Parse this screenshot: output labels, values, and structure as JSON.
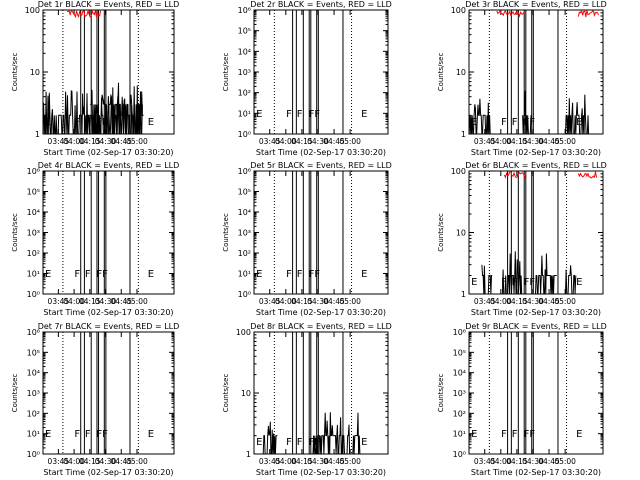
{
  "colors": {
    "events": "#000000",
    "lld": "#ff0000",
    "axes": "#000000",
    "background": "#ffffff"
  },
  "chart_data": [
    {
      "type": "line",
      "title": "Det 1r BLACK = Events, RED = LLD",
      "xlabel": "Start Time (02-Sep-17 03:30:20)",
      "ylabel": "Counts/sec",
      "scale": "log",
      "ylim": [
        1,
        100
      ],
      "ytick_labels": [
        "1",
        "10",
        "100"
      ],
      "xtick_labels": [
        "03:45",
        "04:00",
        "04:15",
        "04:30",
        "04:45",
        "05:00"
      ],
      "flags": [
        {
          "x": 1,
          "label": "E"
        },
        {
          "x": 29,
          "label": "F"
        },
        {
          "x": 39,
          "label": "F"
        },
        {
          "x": 50,
          "label": "FF"
        },
        {
          "x": 99,
          "label": "E"
        }
      ],
      "event_series": [
        {
          "from": 0,
          "to": 96,
          "level": 2,
          "spikes": 3
        },
        {
          "from": 45,
          "to": 95,
          "level": 3,
          "spikes": 4
        }
      ],
      "lld_series": [
        {
          "from": 23,
          "to": 55,
          "level": 90
        }
      ]
    },
    {
      "type": "line",
      "title": "Det 2r BLACK = Events, RED = LLD",
      "xlabel": "Start Time (02-Sep-17 03:30:20)",
      "ylabel": "Counts/sec",
      "scale": "log",
      "ylim": [
        1,
        1000000
      ],
      "ytick_labels": [
        "10⁰",
        "10¹",
        "10²",
        "10³",
        "10⁴",
        "10⁵",
        "10⁶"
      ],
      "xtick_labels": [
        "03:45",
        "04:00",
        "04:15",
        "04:30",
        "04:45",
        "05:00"
      ],
      "flags": [
        {
          "x": 1,
          "label": "E"
        },
        {
          "x": 29,
          "label": "F"
        },
        {
          "x": 39,
          "label": "F"
        },
        {
          "x": 50,
          "label": "FF"
        },
        {
          "x": 99,
          "label": "E"
        }
      ],
      "event_series": [],
      "lld_series": []
    },
    {
      "type": "line",
      "title": "Det 3r BLACK = Events, RED = LLD",
      "xlabel": "Start Time (02-Sep-17 03:30:20)",
      "ylabel": "Counts/sec",
      "scale": "log",
      "ylim": [
        1,
        100
      ],
      "ytick_labels": [
        "1",
        "10",
        "100"
      ],
      "xtick_labels": [
        "03:45",
        "04:00",
        "04:15",
        "04:30",
        "04:45",
        "05:00"
      ],
      "flags": [
        {
          "x": 1,
          "label": "E"
        },
        {
          "x": 29,
          "label": "F"
        },
        {
          "x": 39,
          "label": "F"
        },
        {
          "x": 50,
          "label": "FF"
        },
        {
          "x": 99,
          "label": "E"
        }
      ],
      "event_series": [
        {
          "from": 0,
          "to": 20,
          "level": 2,
          "spikes": 3
        },
        {
          "from": 50,
          "to": 58,
          "level": 2,
          "spikes": 3
        },
        {
          "from": 90,
          "to": 112,
          "level": 2,
          "spikes": 3
        }
      ],
      "lld_series": [
        {
          "from": 26,
          "to": 52,
          "level": 90
        },
        {
          "from": 102,
          "to": 121,
          "level": 90
        }
      ]
    },
    {
      "type": "line",
      "title": "Det 4r BLACK = Events, RED = LLD",
      "xlabel": "Start Time (02-Sep-17 03:30:20)",
      "ylabel": "Counts/sec",
      "scale": "log",
      "ylim": [
        1,
        1000000
      ],
      "ytick_labels": [
        "10⁰",
        "10¹",
        "10²",
        "10³",
        "10⁴",
        "10⁵",
        "10⁶"
      ],
      "xtick_labels": [
        "03:45",
        "04:00",
        "04:15",
        "04:30",
        "04:45",
        "05:00"
      ],
      "flags": [
        {
          "x": 1,
          "label": "E"
        },
        {
          "x": 29,
          "label": "F"
        },
        {
          "x": 39,
          "label": "F"
        },
        {
          "x": 50,
          "label": "FF"
        },
        {
          "x": 99,
          "label": "E"
        }
      ],
      "event_series": [],
      "lld_series": []
    },
    {
      "type": "line",
      "title": "Det 5r BLACK = Events, RED = LLD",
      "xlabel": "Start Time (02-Sep-17 03:30:20)",
      "ylabel": "Counts/sec",
      "scale": "log",
      "ylim": [
        1,
        1000000
      ],
      "ytick_labels": [
        "10⁰",
        "10¹",
        "10²",
        "10³",
        "10⁴",
        "10⁵",
        "10⁶"
      ],
      "xtick_labels": [
        "03:45",
        "04:00",
        "04:15",
        "04:30",
        "04:45",
        "05:00"
      ],
      "flags": [
        {
          "x": 1,
          "label": "E"
        },
        {
          "x": 29,
          "label": "F"
        },
        {
          "x": 39,
          "label": "F"
        },
        {
          "x": 50,
          "label": "FF"
        },
        {
          "x": 99,
          "label": "E"
        }
      ],
      "event_series": [],
      "lld_series": []
    },
    {
      "type": "line",
      "title": "Det 6r BLACK = Events, RED = LLD",
      "xlabel": "Start Time (02-Sep-17 03:30:20)",
      "ylabel": "Counts/sec",
      "scale": "log",
      "ylim": [
        1,
        100
      ],
      "ytick_labels": [
        "1",
        "10",
        "100"
      ],
      "xtick_labels": [
        "03:45",
        "04:00",
        "04:15",
        "04:30",
        "04:45",
        "05:00"
      ],
      "flags": [
        {
          "x": 1,
          "label": "E"
        },
        {
          "x": 29,
          "label": "F"
        },
        {
          "x": 39,
          "label": "F"
        },
        {
          "x": 50,
          "label": "FF"
        },
        {
          "x": 99,
          "label": "E"
        }
      ],
      "event_series": [
        {
          "from": 12,
          "to": 22,
          "level": 2,
          "spikes": 2
        },
        {
          "from": 30,
          "to": 50,
          "level": 2,
          "spikes": 3
        },
        {
          "from": 62,
          "to": 82,
          "level": 2,
          "spikes": 3
        },
        {
          "from": 90,
          "to": 100,
          "level": 2,
          "spikes": 2
        }
      ],
      "lld_series": [
        {
          "from": 33,
          "to": 53,
          "level": 90
        },
        {
          "from": 102,
          "to": 119,
          "level": 90
        }
      ]
    },
    {
      "type": "line",
      "title": "Det 7r BLACK = Events, RED = LLD",
      "xlabel": "Start Time (02-Sep-17 03:30:20)",
      "ylabel": "Counts/sec",
      "scale": "log",
      "ylim": [
        1,
        1000000
      ],
      "ytick_labels": [
        "10⁰",
        "10¹",
        "10²",
        "10³",
        "10⁴",
        "10⁵",
        "10⁶"
      ],
      "xtick_labels": [
        "03:45",
        "04:00",
        "04:15",
        "04:30",
        "04:45",
        "05:00"
      ],
      "flags": [
        {
          "x": 1,
          "label": "E"
        },
        {
          "x": 29,
          "label": "F"
        },
        {
          "x": 39,
          "label": "F"
        },
        {
          "x": 50,
          "label": "FF"
        },
        {
          "x": 99,
          "label": "E"
        }
      ],
      "event_series": [],
      "lld_series": []
    },
    {
      "type": "line",
      "title": "Det 8r BLACK = Events, RED = LLD",
      "xlabel": "Start Time (02-Sep-17 03:30:20)",
      "ylabel": "Counts/sec",
      "scale": "log",
      "ylim": [
        1,
        100
      ],
      "ytick_labels": [
        "1",
        "10",
        "100"
      ],
      "xtick_labels": [
        "03:45",
        "04:00",
        "04:15",
        "04:30",
        "04:45",
        "05:00"
      ],
      "flags": [
        {
          "x": 1,
          "label": "E"
        },
        {
          "x": 29,
          "label": "F"
        },
        {
          "x": 39,
          "label": "F"
        },
        {
          "x": 50,
          "label": "FF"
        },
        {
          "x": 99,
          "label": "E"
        }
      ],
      "event_series": [
        {
          "from": 8,
          "to": 22,
          "level": 2,
          "spikes": 2
        },
        {
          "from": 55,
          "to": 100,
          "level": 2,
          "spikes": 3
        }
      ],
      "lld_series": []
    },
    {
      "type": "line",
      "title": "Det 9r BLACK = Events, RED = LLD",
      "xlabel": "Start Time (02-Sep-17 03:30:20)",
      "ylabel": "Counts/sec",
      "scale": "log",
      "ylim": [
        1,
        1000000
      ],
      "ytick_labels": [
        "10⁰",
        "10¹",
        "10²",
        "10³",
        "10⁴",
        "10⁵",
        "10⁶"
      ],
      "xtick_labels": [
        "03:45",
        "04:00",
        "04:15",
        "04:30",
        "04:45",
        "05:00"
      ],
      "flags": [
        {
          "x": 1,
          "label": "E"
        },
        {
          "x": 29,
          "label": "F"
        },
        {
          "x": 39,
          "label": "F"
        },
        {
          "x": 50,
          "label": "FF"
        },
        {
          "x": 99,
          "label": "E"
        }
      ],
      "event_series": [],
      "lld_series": []
    }
  ]
}
